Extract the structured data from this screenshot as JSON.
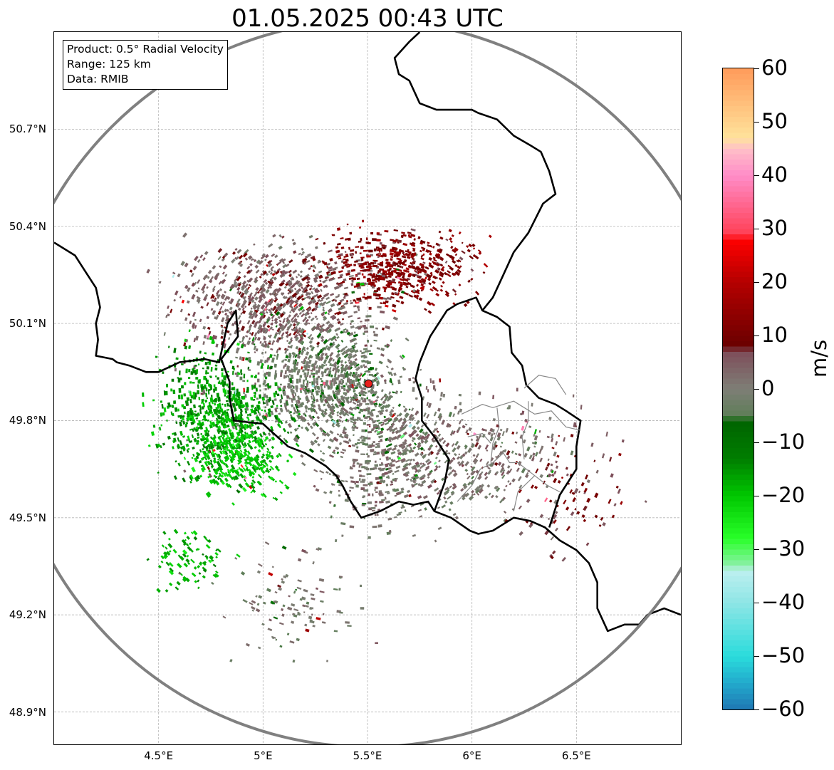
{
  "title": "01.05.2025 00:43 UTC",
  "info": {
    "product": "Product: 0.5° Radial Velocity",
    "range": "Range: 125 km",
    "data": "Data: RMIB"
  },
  "map": {
    "lon_range": [
      4.0,
      7.0
    ],
    "lat_range": [
      48.8,
      51.0
    ],
    "radar_site": {
      "lon": 5.505,
      "lat": 49.914
    },
    "range_circle_color": "#808080",
    "radar_marker_color": "#e8201c",
    "lat_ticks": [
      {
        "value": 50.7,
        "label": "50.7°N"
      },
      {
        "value": 50.4,
        "label": "50.4°N"
      },
      {
        "value": 50.1,
        "label": "50.1°N"
      },
      {
        "value": 49.8,
        "label": "49.8°N"
      },
      {
        "value": 49.5,
        "label": "49.5°N"
      },
      {
        "value": 49.2,
        "label": "49.2°N"
      },
      {
        "value": 48.9,
        "label": "48.9°N"
      }
    ],
    "lon_ticks": [
      {
        "value": 4.5,
        "label": "4.5°E"
      },
      {
        "value": 5.0,
        "label": "5°E"
      },
      {
        "value": 5.5,
        "label": "5.5°E"
      },
      {
        "value": 6.0,
        "label": "6°E"
      },
      {
        "value": 6.5,
        "label": "6.5°E"
      }
    ],
    "borders": [
      [
        [
          4.0,
          50.35
        ],
        [
          4.1,
          50.31
        ],
        [
          4.15,
          50.26
        ],
        [
          4.2,
          50.21
        ],
        [
          4.22,
          50.15
        ],
        [
          4.2,
          50.1
        ],
        [
          4.21,
          50.05
        ],
        [
          4.2,
          50.0
        ],
        [
          4.28,
          49.99
        ],
        [
          4.3,
          49.98
        ],
        [
          4.36,
          49.97
        ],
        [
          4.44,
          49.95
        ],
        [
          4.5,
          49.95
        ],
        [
          4.6,
          49.98
        ],
        [
          4.72,
          49.99
        ],
        [
          4.79,
          49.98
        ],
        [
          4.83,
          50.1
        ],
        [
          4.87,
          50.14
        ],
        [
          4.88,
          50.06
        ],
        [
          4.8,
          49.99
        ],
        [
          4.84,
          49.92
        ],
        [
          4.84,
          49.87
        ],
        [
          4.86,
          49.8
        ],
        [
          5.0,
          49.79
        ],
        [
          5.12,
          49.72
        ],
        [
          5.2,
          49.7
        ],
        [
          5.3,
          49.66
        ],
        [
          5.35,
          49.63
        ],
        [
          5.38,
          49.6
        ],
        [
          5.42,
          49.55
        ],
        [
          5.47,
          49.5
        ],
        [
          5.56,
          49.52
        ],
        [
          5.65,
          49.55
        ],
        [
          5.72,
          49.54
        ],
        [
          5.79,
          49.55
        ],
        [
          5.82,
          49.52
        ],
        [
          5.9,
          49.5
        ],
        [
          5.99,
          49.46
        ],
        [
          6.03,
          49.45
        ],
        [
          6.1,
          49.46
        ],
        [
          6.2,
          49.5
        ],
        [
          6.28,
          49.49
        ],
        [
          6.35,
          49.47
        ],
        [
          6.42,
          49.43
        ],
        [
          6.5,
          49.4
        ],
        [
          6.56,
          49.36
        ],
        [
          6.6,
          49.3
        ],
        [
          6.6,
          49.22
        ],
        [
          6.65,
          49.15
        ],
        [
          6.73,
          49.17
        ],
        [
          6.8,
          49.17
        ],
        [
          6.84,
          49.2
        ],
        [
          6.92,
          49.22
        ],
        [
          7.0,
          49.2
        ]
      ],
      [
        [
          5.82,
          49.52
        ],
        [
          5.87,
          49.61
        ],
        [
          5.89,
          49.68
        ],
        [
          5.82,
          49.75
        ],
        [
          5.76,
          49.8
        ],
        [
          5.76,
          49.87
        ],
        [
          5.73,
          49.93
        ],
        [
          5.75,
          49.98
        ],
        [
          5.8,
          50.06
        ],
        [
          5.88,
          50.14
        ],
        [
          5.93,
          50.16
        ],
        [
          6.02,
          50.18
        ],
        [
          6.05,
          50.14
        ],
        [
          6.12,
          50.12
        ],
        [
          6.18,
          50.09
        ],
        [
          6.19,
          50.01
        ],
        [
          6.24,
          49.97
        ],
        [
          6.26,
          49.91
        ],
        [
          6.32,
          49.87
        ],
        [
          6.4,
          49.85
        ],
        [
          6.45,
          49.83
        ],
        [
          6.52,
          49.8
        ],
        [
          6.5,
          49.72
        ],
        [
          6.5,
          49.65
        ],
        [
          6.42,
          49.57
        ],
        [
          6.37,
          49.47
        ]
      ],
      [
        [
          6.05,
          50.14
        ],
        [
          6.1,
          50.18
        ],
        [
          6.15,
          50.25
        ],
        [
          6.2,
          50.32
        ],
        [
          6.27,
          50.38
        ],
        [
          6.34,
          50.47
        ],
        [
          6.4,
          50.5
        ],
        [
          6.37,
          50.57
        ],
        [
          6.33,
          50.63
        ],
        [
          6.28,
          50.65
        ],
        [
          6.2,
          50.68
        ],
        [
          6.12,
          50.73
        ],
        [
          6.03,
          50.75
        ],
        [
          6.0,
          50.76
        ],
        [
          5.92,
          50.76
        ],
        [
          5.83,
          50.76
        ],
        [
          5.75,
          50.78
        ],
        [
          5.7,
          50.85
        ],
        [
          5.65,
          50.87
        ],
        [
          5.63,
          50.92
        ],
        [
          5.7,
          50.97
        ],
        [
          5.75,
          51.0
        ]
      ]
    ],
    "inner_borders": [
      [
        [
          5.95,
          49.82
        ],
        [
          6.05,
          49.85
        ],
        [
          6.1,
          49.84
        ],
        [
          6.2,
          49.86
        ],
        [
          6.3,
          49.82
        ],
        [
          6.38,
          49.83
        ],
        [
          6.45,
          49.78
        ],
        [
          6.52,
          49.77
        ]
      ],
      [
        [
          5.93,
          49.55
        ],
        [
          6.0,
          49.6
        ],
        [
          6.04,
          49.65
        ],
        [
          6.1,
          49.67
        ],
        [
          6.15,
          49.7
        ],
        [
          6.18,
          49.67
        ],
        [
          6.22,
          49.67
        ],
        [
          6.3,
          49.63
        ],
        [
          6.36,
          49.6
        ],
        [
          6.42,
          49.58
        ]
      ],
      [
        [
          6.09,
          49.67
        ],
        [
          6.1,
          49.73
        ],
        [
          6.13,
          49.78
        ],
        [
          6.12,
          49.84
        ]
      ],
      [
        [
          6.25,
          49.68
        ],
        [
          6.24,
          49.75
        ],
        [
          6.27,
          49.8
        ],
        [
          6.27,
          49.86
        ]
      ],
      [
        [
          5.98,
          49.75
        ],
        [
          6.05,
          49.76
        ],
        [
          6.09,
          49.73
        ]
      ],
      [
        [
          6.2,
          49.52
        ],
        [
          6.22,
          49.58
        ],
        [
          6.3,
          49.63
        ]
      ],
      [
        [
          6.25,
          49.9
        ],
        [
          6.32,
          49.94
        ],
        [
          6.4,
          49.93
        ],
        [
          6.45,
          49.88
        ]
      ]
    ]
  },
  "colorbar": {
    "min": -60,
    "max": 60,
    "unit": "m/s",
    "ticks": [
      {
        "value": 60,
        "label": "60"
      },
      {
        "value": 50,
        "label": "50"
      },
      {
        "value": 40,
        "label": "40"
      },
      {
        "value": 30,
        "label": "30"
      },
      {
        "value": 20,
        "label": "20"
      },
      {
        "value": 10,
        "label": "10"
      },
      {
        "value": 0,
        "label": "0"
      },
      {
        "value": -10,
        "label": "−10"
      },
      {
        "value": -20,
        "label": "−20"
      },
      {
        "value": -30,
        "label": "−30"
      },
      {
        "value": -40,
        "label": "−40"
      },
      {
        "value": -50,
        "label": "−50"
      },
      {
        "value": -60,
        "label": "−60"
      }
    ],
    "color_stops": [
      {
        "value": -60,
        "color": "#1f77b4"
      },
      {
        "value": -55,
        "color": "#22aacc"
      },
      {
        "value": -50,
        "color": "#2adcdc"
      },
      {
        "value": -40,
        "color": "#8ee5e5"
      },
      {
        "value": -34,
        "color": "#bdf0f0"
      },
      {
        "value": -33,
        "color": "#8cf0a8"
      },
      {
        "value": -28,
        "color": "#29ff29"
      },
      {
        "value": -20,
        "color": "#00c800"
      },
      {
        "value": -13,
        "color": "#007d00"
      },
      {
        "value": -6,
        "color": "#006400"
      },
      {
        "value": -5,
        "color": "#5e7e58"
      },
      {
        "value": 0,
        "color": "#7e7e76"
      },
      {
        "value": 7,
        "color": "#7e4e5a"
      },
      {
        "value": 8,
        "color": "#6a0000"
      },
      {
        "value": 20,
        "color": "#b40000"
      },
      {
        "value": 28,
        "color": "#ff0000"
      },
      {
        "value": 29,
        "color": "#ff4055"
      },
      {
        "value": 40,
        "color": "#ff8cc8"
      },
      {
        "value": 45,
        "color": "#ffc0c8"
      },
      {
        "value": 47,
        "color": "#ffe39c"
      },
      {
        "value": 60,
        "color": "#ff9b5a"
      }
    ]
  }
}
